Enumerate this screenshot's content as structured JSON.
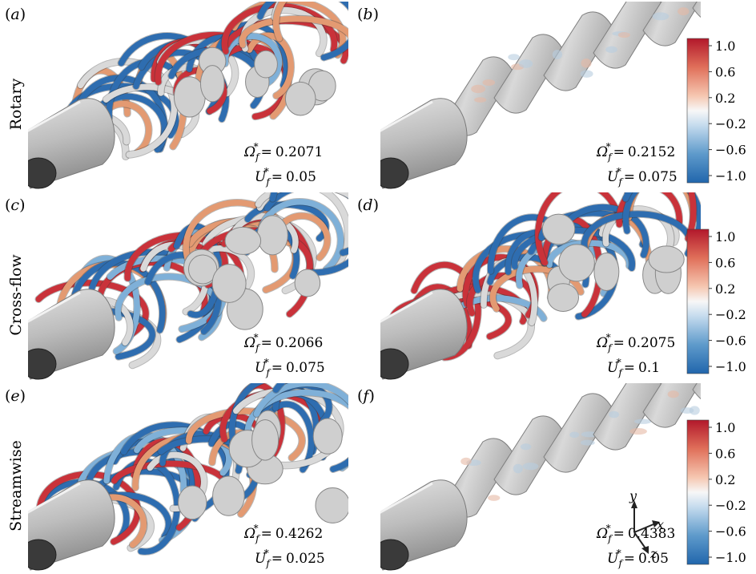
{
  "panels": [
    {
      "id": "a",
      "label": "a",
      "omega": "0.2071",
      "u": "0.05",
      "kind": "vortex"
    },
    {
      "id": "b",
      "label": "b",
      "omega": "0.2152",
      "u": "0.075",
      "kind": "shells"
    },
    {
      "id": "c",
      "label": "c",
      "omega": "0.2066",
      "u": "0.075",
      "kind": "vortex"
    },
    {
      "id": "d",
      "label": "d",
      "omega": "0.2075",
      "u": "0.1",
      "kind": "vortex"
    },
    {
      "id": "e",
      "label": "e",
      "omega": "0.4262",
      "u": "0.025",
      "kind": "vortex"
    },
    {
      "id": "f",
      "label": "f",
      "omega": "0.4383",
      "u": "0.05",
      "kind": "shells"
    }
  ],
  "row_labels": [
    "Rotary",
    "Cross-flow",
    "Streamwise"
  ],
  "param_symbols": {
    "omega": "Ω",
    "u": "U",
    "subscript": "f",
    "superscript": "*",
    "equals": "="
  },
  "colorbar": {
    "ticks": [
      "1.0",
      "0.6",
      "0.2",
      "−0.2",
      "−0.6",
      "−1.0"
    ],
    "colors": {
      "max": "#b2182b",
      "mid": "#f7f7f7",
      "min": "#2166ac"
    }
  },
  "axes_triad": {
    "labels": [
      "y",
      "x",
      "z"
    ]
  },
  "colors": {
    "surface": "#c9c9c9",
    "cylinder_end": "#3a3a3a",
    "red": "#c9323a",
    "blue": "#2e6db0",
    "orange": "#e39a72",
    "lightblue": "#7fb0d8"
  }
}
